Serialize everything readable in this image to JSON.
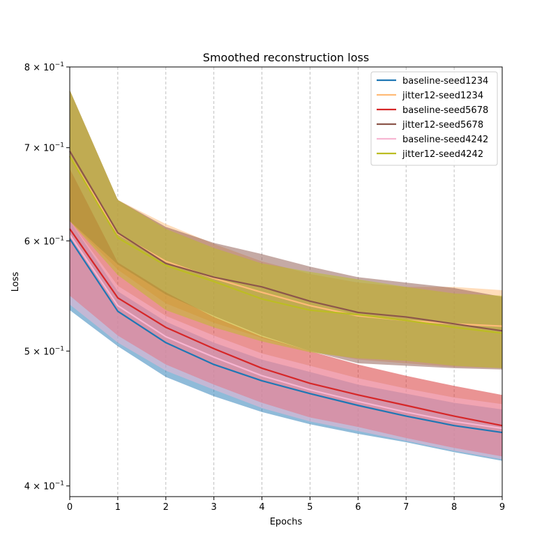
{
  "chart_data": {
    "type": "line",
    "title": "Smoothed reconstruction loss",
    "xlabel": "Epochs",
    "ylabel": "Loss",
    "yscale": "log",
    "xlim": [
      0,
      9
    ],
    "ylim": [
      0.393,
      0.8
    ],
    "x": [
      0,
      1,
      2,
      3,
      4,
      5,
      6,
      7,
      8,
      9
    ],
    "x_ticks": [
      "0",
      "1",
      "2",
      "3",
      "4",
      "5",
      "6",
      "7",
      "8",
      "9"
    ],
    "y_ticks": [
      {
        "value": 0.4,
        "base": "4",
        "label": "4 × 10",
        "exp": "−1"
      },
      {
        "value": 0.5,
        "base": "5",
        "label": "5 × 10",
        "exp": "−1"
      },
      {
        "value": 0.6,
        "base": "6",
        "label": "6 × 10",
        "exp": "−1"
      },
      {
        "value": 0.7,
        "base": "7",
        "label": "7 × 10",
        "exp": "−1"
      },
      {
        "value": 0.8,
        "base": "8",
        "label": "8 × 10",
        "exp": "−1"
      }
    ],
    "grid": "vertical-dashed",
    "legend_position": "top-right",
    "series": [
      {
        "name": "baseline-seed1234",
        "color": "#1f77b4",
        "values": [
          0.602,
          0.534,
          0.507,
          0.489,
          0.476,
          0.466,
          0.457,
          0.449,
          0.442,
          0.437
        ],
        "lower": [
          0.535,
          0.504,
          0.479,
          0.464,
          0.452,
          0.443,
          0.436,
          0.43,
          0.423,
          0.417
        ],
        "upper": [
          0.62,
          0.552,
          0.525,
          0.507,
          0.493,
          0.483,
          0.473,
          0.466,
          0.459,
          0.454
        ]
      },
      {
        "name": "jitter12-seed1234",
        "color": "#ffbb78",
        "values": [
          0.69,
          0.607,
          0.58,
          0.564,
          0.551,
          0.539,
          0.53,
          0.526,
          0.523,
          0.521
        ],
        "lower": [
          0.62,
          0.572,
          0.541,
          0.524,
          0.511,
          0.5,
          0.493,
          0.49,
          0.487,
          0.486
        ],
        "upper": [
          0.77,
          0.642,
          0.617,
          0.597,
          0.58,
          0.568,
          0.56,
          0.556,
          0.556,
          0.553
        ]
      },
      {
        "name": "baseline-seed5678",
        "color": "#d62728",
        "values": [
          0.612,
          0.546,
          0.52,
          0.502,
          0.486,
          0.474,
          0.465,
          0.457,
          0.449,
          0.442
        ],
        "lower": [
          0.548,
          0.513,
          0.489,
          0.473,
          0.459,
          0.448,
          0.441,
          0.433,
          0.426,
          0.42
        ],
        "upper": [
          0.676,
          0.579,
          0.551,
          0.529,
          0.512,
          0.5,
          0.489,
          0.48,
          0.472,
          0.465
        ]
      },
      {
        "name": "jitter12-seed5678",
        "color": "#8c564b",
        "values": [
          0.696,
          0.608,
          0.578,
          0.565,
          0.556,
          0.543,
          0.533,
          0.529,
          0.523,
          0.517
        ],
        "lower": [
          0.62,
          0.577,
          0.549,
          0.53,
          0.513,
          0.5,
          0.49,
          0.488,
          0.486,
          0.485
        ],
        "upper": [
          0.77,
          0.642,
          0.614,
          0.598,
          0.587,
          0.575,
          0.565,
          0.56,
          0.555,
          0.547
        ]
      },
      {
        "name": "baseline-seed4242",
        "color": "#f7b6d2",
        "values": [
          0.606,
          0.539,
          0.512,
          0.495,
          0.48,
          0.469,
          0.46,
          0.452,
          0.445,
          0.44
        ],
        "lower": [
          0.54,
          0.507,
          0.484,
          0.469,
          0.455,
          0.445,
          0.438,
          0.431,
          0.424,
          0.418
        ],
        "upper": [
          0.62,
          0.557,
          0.53,
          0.513,
          0.498,
          0.488,
          0.478,
          0.47,
          0.463,
          0.458
        ]
      },
      {
        "name": "jitter12-seed4242",
        "color": "#bcbd22",
        "values": [
          0.69,
          0.603,
          0.576,
          0.561,
          0.545,
          0.535,
          0.531,
          0.526,
          0.52,
          0.515
        ],
        "lower": [
          0.62,
          0.567,
          0.535,
          0.52,
          0.508,
          0.499,
          0.494,
          0.492,
          0.488,
          0.486
        ],
        "upper": [
          0.77,
          0.642,
          0.612,
          0.593,
          0.578,
          0.57,
          0.563,
          0.556,
          0.55,
          0.548
        ]
      }
    ]
  }
}
